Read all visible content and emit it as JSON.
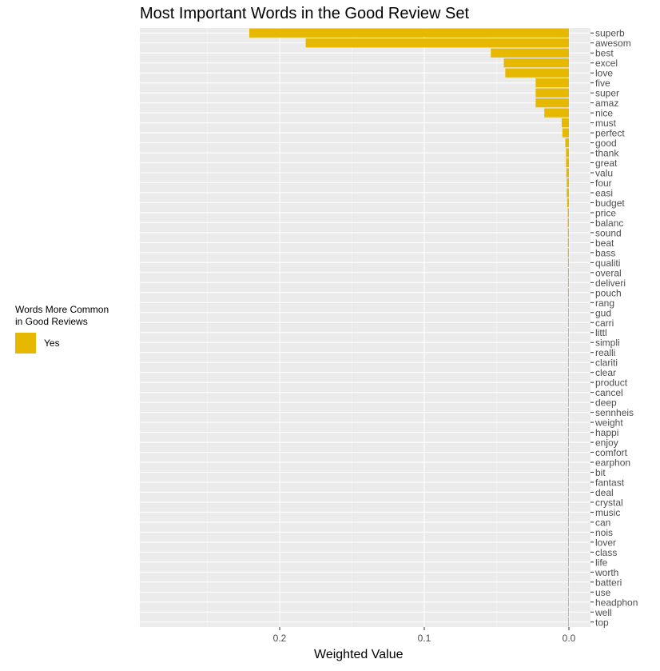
{
  "chart_data": {
    "type": "bar",
    "orientation": "horizontal",
    "title": "Most Important Words in the Good Review Set",
    "xlabel": "Weighted Value",
    "x_reversed": true,
    "xlim": [
      0.0,
      0.295
    ],
    "x_ticks": [
      0.2,
      0.1,
      0.0
    ],
    "x_tick_labels": [
      "0.2",
      "0.1",
      "0.0"
    ],
    "legend": {
      "title": "Words More Common in Good Reviews",
      "title_line1": "Words More Common",
      "title_line2": "in Good Reviews",
      "entries": [
        {
          "label": "Yes",
          "color": "#E6B800"
        }
      ]
    },
    "bar_color": "#E6B800",
    "panel_background": "#EBEBEB",
    "grid": true,
    "categories": [
      "superb",
      "awesom",
      "best",
      "excel",
      "love",
      "five",
      "super",
      "amaz",
      "nice",
      "must",
      "perfect",
      "good",
      "thank",
      "great",
      "valu",
      "four",
      "easi",
      "budget",
      "price",
      "balanc",
      "sound",
      "beat",
      "bass",
      "qualiti",
      "overal",
      "deliveri",
      "pouch",
      "rang",
      "gud",
      "carri",
      "littl",
      "simpli",
      "realli",
      "clariti",
      "clear",
      "product",
      "cancel",
      "deep",
      "sennheis",
      "weight",
      "happi",
      "enjoy",
      "comfort",
      "earphon",
      "bit",
      "fantast",
      "deal",
      "crystal",
      "music",
      "can",
      "nois",
      "lover",
      "class",
      "life",
      "worth",
      "batteri",
      "use",
      "headphon",
      "well",
      "top"
    ],
    "values": [
      0.221,
      0.182,
      0.054,
      0.045,
      0.044,
      0.023,
      0.023,
      0.023,
      0.017,
      0.005,
      0.0045,
      0.0025,
      0.002,
      0.002,
      0.0018,
      0.0015,
      0.0015,
      0.0012,
      0.0008,
      0.0008,
      0.0007,
      0.0007,
      0.0007,
      0.0006,
      0.0006,
      0.0006,
      0.0006,
      0.0005,
      0.0005,
      0.0005,
      0.0005,
      0.0005,
      0.0005,
      0.0005,
      0.0005,
      0.0005,
      0.0005,
      0.0005,
      0.0005,
      0.0005,
      0.0005,
      0.0005,
      0.0005,
      0.0005,
      0.0005,
      0.0005,
      0.0005,
      0.0005,
      0.0005,
      0.0005,
      0.0005,
      0.0005,
      0.0005,
      0.0005,
      0.0005,
      0.0005,
      0.0005,
      0.0005,
      0.0005,
      0.0005
    ]
  }
}
